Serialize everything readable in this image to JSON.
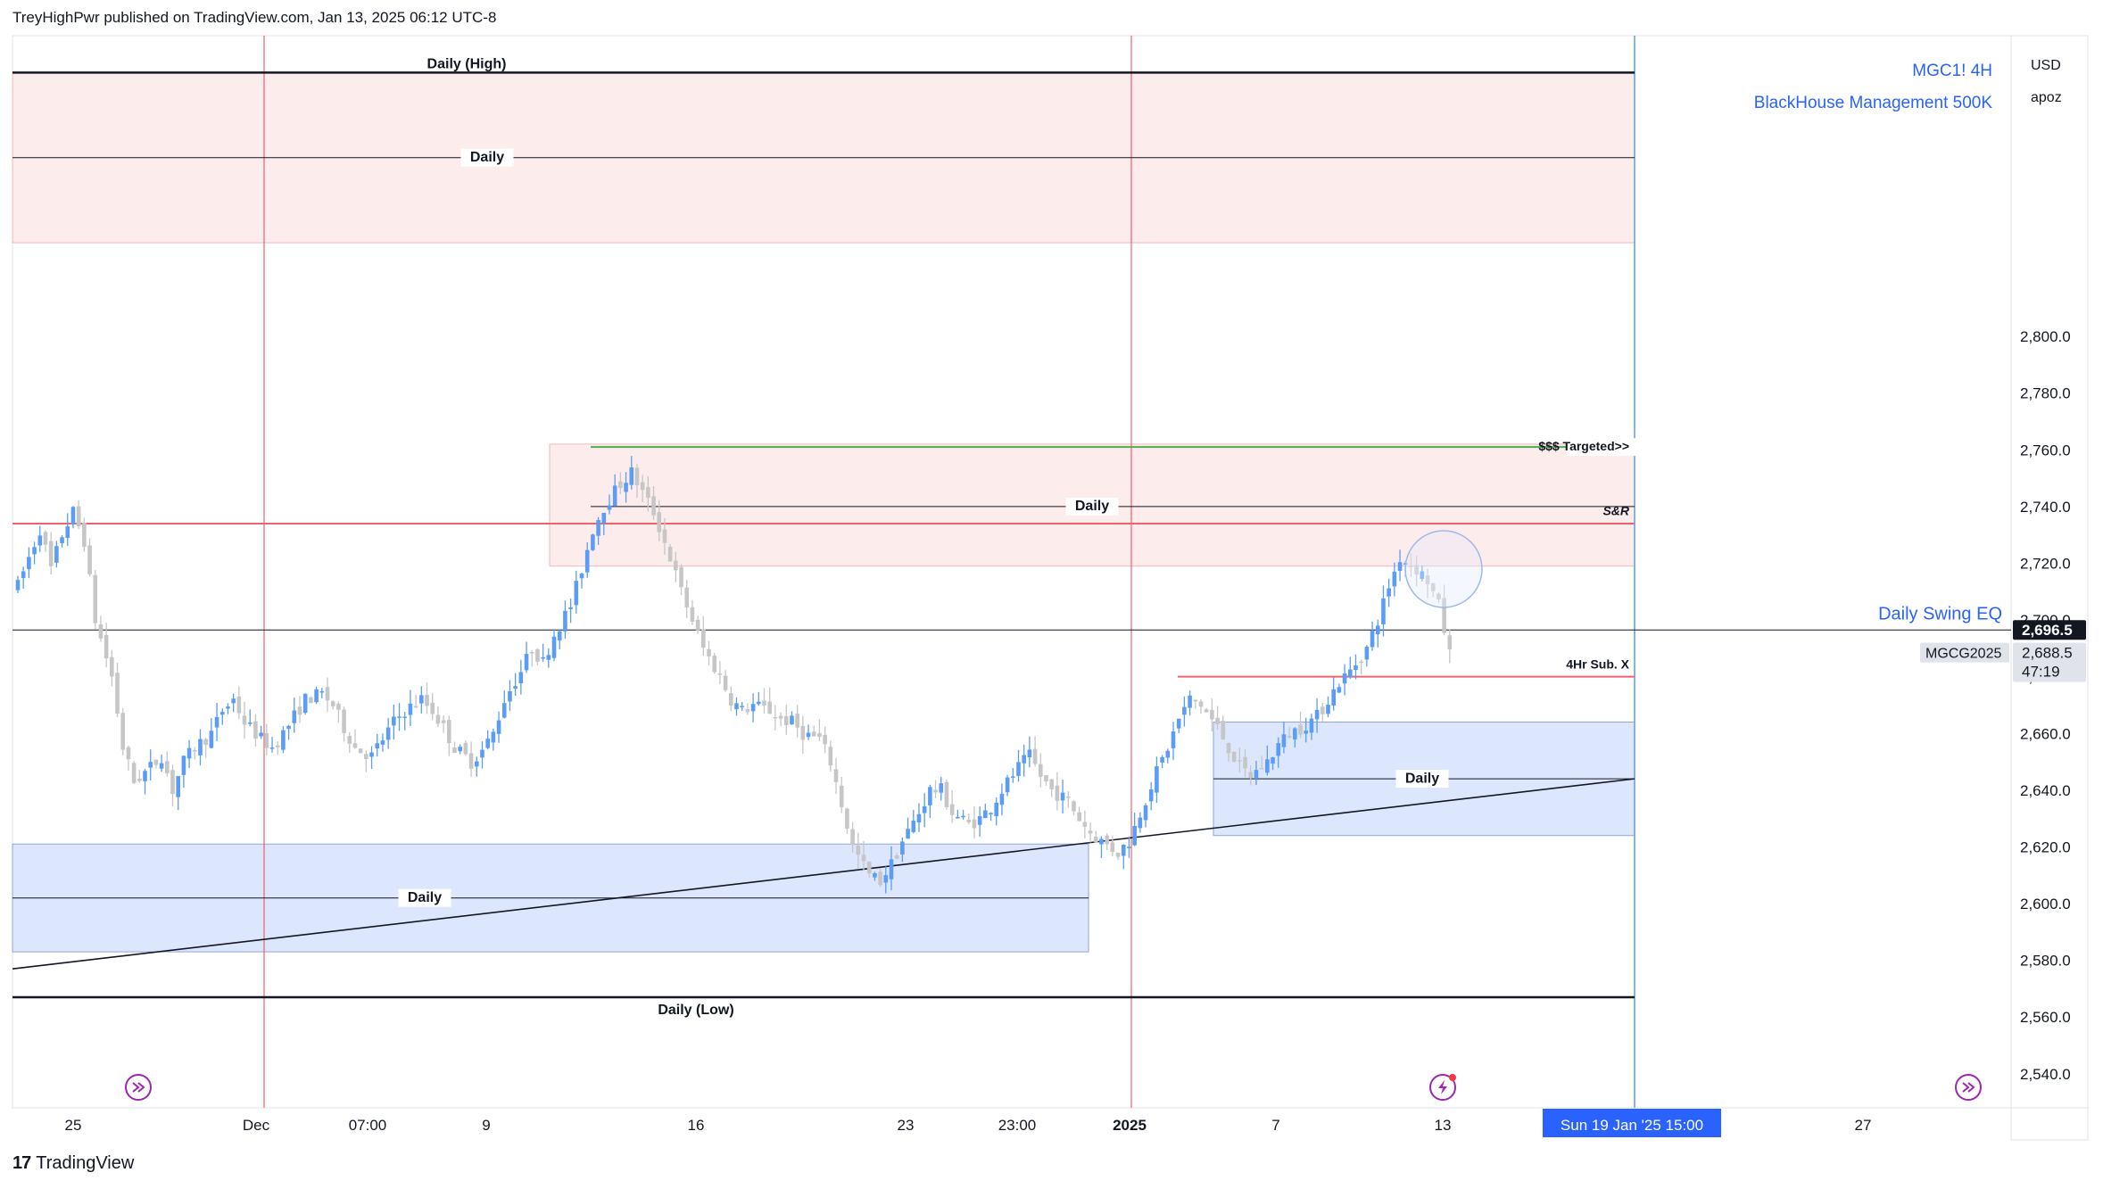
{
  "header": {
    "publisher_line": "TreyHighPwr published on TradingView.com, Jan 13, 2025 06:12 UTC-8"
  },
  "legend": {
    "symbol": "MGC1! 4H",
    "indicator": "BlackHouse Management 500K"
  },
  "scale": {
    "currency": "USD",
    "user": "apoz"
  },
  "footer": {
    "brand": "TradingView"
  },
  "colors": {
    "up": "#5b9cf6",
    "down": "#c6c6c6",
    "resistance_zone": "#fdecec",
    "support_zone": "#dce6fc",
    "accent_blue": "#2962ff",
    "red_line": "#f0616d",
    "green_line": "#4caf50"
  },
  "chart_data": {
    "type": "candlestick",
    "title": "MGC1! 4H",
    "ylim": [
      2528,
      2906
    ],
    "y_ticks": [
      2540,
      2560,
      2580,
      2600,
      2620,
      2640,
      2660,
      2680,
      2700,
      2720,
      2740,
      2760,
      2780,
      2800
    ],
    "x_tick_labels": [
      "25",
      "Dec",
      "07:00",
      "9",
      "16",
      "23",
      "23:00",
      "2025",
      "7",
      "13",
      "27"
    ],
    "cursor_date_label": "Sun 19 Jan '25   15:00",
    "last_price": 2688.5,
    "countdown": "47:19",
    "crosshair_price": "2,696.5",
    "symbol_tag": "MGCG2025",
    "horizontal_levels": [
      {
        "label": "Daily (High)",
        "price": 2893
      },
      {
        "label": "Daily",
        "price": 2863
      },
      {
        "label": "$$$ Targeted>>",
        "price": 2761
      },
      {
        "label": "Daily",
        "price": 2740
      },
      {
        "label": "S&R",
        "price": 2734
      },
      {
        "label": "Daily Swing EQ",
        "price": 2696.5
      },
      {
        "label": "4Hr Sub. X",
        "price": 2680
      },
      {
        "label": "Daily",
        "price": 2644
      },
      {
        "label": "Daily",
        "price": 2602
      },
      {
        "label": "Daily (Low)",
        "price": 2567
      }
    ],
    "zones": [
      {
        "type": "resistance",
        "top": 2893,
        "bottom": 2833
      },
      {
        "type": "resistance",
        "top": 2762,
        "bottom": 2719
      },
      {
        "type": "support",
        "top": 2664,
        "bottom": 2624
      },
      {
        "type": "support",
        "top": 2621,
        "bottom": 2583
      }
    ],
    "trendline": {
      "start_price": 2577,
      "end_price": 2644
    },
    "price_path": [
      [
        0,
        2712
      ],
      [
        2,
        2722
      ],
      [
        4,
        2732
      ],
      [
        6,
        2718
      ],
      [
        8,
        2730
      ],
      [
        10,
        2738
      ],
      [
        12,
        2728
      ],
      [
        14,
        2700
      ],
      [
        17,
        2680
      ],
      [
        19,
        2655
      ],
      [
        21,
        2643
      ],
      [
        24,
        2648
      ],
      [
        26,
        2652
      ],
      [
        28,
        2640
      ],
      [
        30,
        2650
      ],
      [
        32,
        2655
      ],
      [
        35,
        2660
      ],
      [
        37,
        2668
      ],
      [
        39,
        2672
      ],
      [
        41,
        2664
      ],
      [
        44,
        2658
      ],
      [
        46,
        2655
      ],
      [
        48,
        2660
      ],
      [
        50,
        2666
      ],
      [
        52,
        2672
      ],
      [
        55,
        2674
      ],
      [
        57,
        2670
      ],
      [
        59,
        2662
      ],
      [
        61,
        2655
      ],
      [
        64,
        2652
      ],
      [
        66,
        2658
      ],
      [
        68,
        2664
      ],
      [
        70,
        2668
      ],
      [
        73,
        2672
      ],
      [
        75,
        2668
      ],
      [
        77,
        2662
      ],
      [
        79,
        2655
      ],
      [
        82,
        2650
      ],
      [
        84,
        2654
      ],
      [
        86,
        2660
      ],
      [
        88,
        2672
      ],
      [
        91,
        2682
      ],
      [
        93,
        2690
      ],
      [
        95,
        2685
      ],
      [
        97,
        2695
      ],
      [
        100,
        2705
      ],
      [
        102,
        2718
      ],
      [
        104,
        2732
      ],
      [
        106,
        2740
      ],
      [
        109,
        2748
      ],
      [
        111,
        2752
      ],
      [
        113,
        2745
      ],
      [
        115,
        2738
      ],
      [
        118,
        2722
      ],
      [
        120,
        2710
      ],
      [
        122,
        2700
      ],
      [
        124,
        2690
      ],
      [
        127,
        2680
      ],
      [
        129,
        2672
      ],
      [
        131,
        2668
      ],
      [
        133,
        2670
      ],
      [
        136,
        2668
      ],
      [
        138,
        2665
      ],
      [
        140,
        2664
      ],
      [
        142,
        2660
      ],
      [
        145,
        2658
      ],
      [
        147,
        2650
      ],
      [
        149,
        2635
      ],
      [
        151,
        2620
      ],
      [
        154,
        2610
      ],
      [
        156,
        2608
      ],
      [
        158,
        2614
      ],
      [
        160,
        2622
      ],
      [
        163,
        2632
      ],
      [
        165,
        2640
      ],
      [
        167,
        2640
      ],
      [
        169,
        2632
      ],
      [
        172,
        2628
      ],
      [
        174,
        2630
      ],
      [
        176,
        2634
      ],
      [
        178,
        2640
      ],
      [
        181,
        2648
      ],
      [
        183,
        2652
      ],
      [
        185,
        2645
      ],
      [
        187,
        2640
      ],
      [
        190,
        2636
      ],
      [
        192,
        2630
      ],
      [
        194,
        2625
      ],
      [
        196,
        2622
      ],
      [
        199,
        2618
      ],
      [
        201,
        2622
      ],
      [
        203,
        2632
      ],
      [
        205,
        2642
      ],
      [
        208,
        2655
      ],
      [
        210,
        2665
      ],
      [
        212,
        2672
      ],
      [
        214,
        2670
      ],
      [
        217,
        2662
      ],
      [
        219,
        2655
      ],
      [
        221,
        2648
      ],
      [
        223,
        2645
      ],
      [
        226,
        2650
      ],
      [
        228,
        2656
      ],
      [
        230,
        2660
      ],
      [
        232,
        2662
      ],
      [
        235,
        2666
      ],
      [
        237,
        2672
      ],
      [
        239,
        2678
      ],
      [
        241,
        2682
      ],
      [
        244,
        2690
      ],
      [
        246,
        2700
      ],
      [
        248,
        2712
      ],
      [
        250,
        2722
      ],
      [
        253,
        2718
      ],
      [
        255,
        2714
      ],
      [
        257,
        2705
      ],
      [
        259,
        2688
      ]
    ]
  }
}
